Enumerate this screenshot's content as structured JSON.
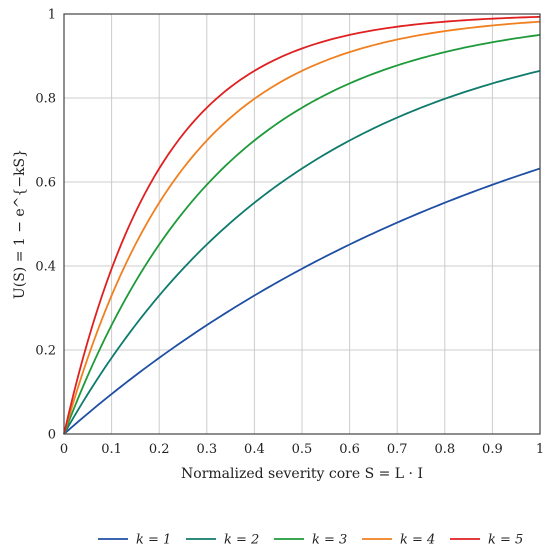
{
  "chart_data": {
    "type": "line",
    "title": "",
    "xlabel": "Normalized severity core S = L · I",
    "ylabel": "U(S) = 1 − e^{−kS}",
    "xlim": [
      0,
      1
    ],
    "ylim": [
      0,
      1
    ],
    "x_ticks": [
      0,
      0.1,
      0.2,
      0.3,
      0.4,
      0.5,
      0.6,
      0.7,
      0.8,
      0.9,
      1
    ],
    "x_tick_labels": [
      "0",
      "0.1",
      "0.2",
      "0.3",
      "0.4",
      "0.5",
      "0.6",
      "0.7",
      "0.8",
      "0.9",
      "1"
    ],
    "y_ticks": [
      0,
      0.2,
      0.4,
      0.6,
      0.8,
      1
    ],
    "y_tick_labels": [
      "0",
      "0.2",
      "0.4",
      "0.6",
      "0.8",
      "1"
    ],
    "grid": true,
    "legend_position": "bottom",
    "x": [
      0,
      0.1,
      0.2,
      0.3,
      0.4,
      0.5,
      0.6,
      0.7,
      0.8,
      0.9,
      1
    ],
    "series": [
      {
        "name": "k = 1",
        "k": 1,
        "color": "#1f4fa3",
        "values": [
          0,
          0.095,
          0.181,
          0.259,
          0.33,
          0.393,
          0.451,
          0.503,
          0.551,
          0.593,
          0.632
        ]
      },
      {
        "name": "k = 2",
        "k": 2,
        "color": "#0f7b6c",
        "values": [
          0,
          0.181,
          0.33,
          0.451,
          0.551,
          0.632,
          0.699,
          0.753,
          0.798,
          0.835,
          0.865
        ]
      },
      {
        "name": "k = 3",
        "k": 3,
        "color": "#1f9a3a",
        "values": [
          0,
          0.259,
          0.451,
          0.593,
          0.699,
          0.777,
          0.835,
          0.878,
          0.909,
          0.933,
          0.95
        ]
      },
      {
        "name": "k = 4",
        "k": 4,
        "color": "#f08020",
        "values": [
          0,
          0.33,
          0.551,
          0.699,
          0.798,
          0.865,
          0.909,
          0.939,
          0.959,
          0.973,
          0.982
        ]
      },
      {
        "name": "k = 5",
        "k": 5,
        "color": "#e02020",
        "values": [
          0,
          0.393,
          0.632,
          0.777,
          0.865,
          0.918,
          0.95,
          0.97,
          0.982,
          0.989,
          0.993
        ]
      }
    ]
  }
}
